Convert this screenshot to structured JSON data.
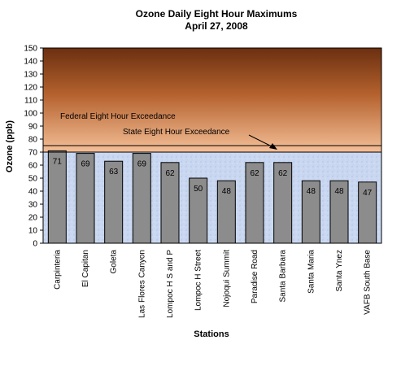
{
  "chart_data": {
    "type": "bar",
    "title": "Ozone Daily Eight Hour Maximums",
    "subtitle": "April 27, 2008",
    "xlabel": "Stations",
    "ylabel": "Ozone (ppb)",
    "ylim": [
      0,
      150
    ],
    "yticks": [
      0,
      10,
      20,
      30,
      40,
      50,
      60,
      70,
      80,
      90,
      100,
      110,
      120,
      130,
      140,
      150
    ],
    "categories": [
      "Carpinteria",
      "El Capitan",
      "Goleta",
      "Las Flores Canyon",
      "Lompoc H S and P",
      "Lompoc H Street",
      "Nojoqui Summit",
      "Paradise Road",
      "Santa Barbara",
      "Santa Maria",
      "Santa Ynez",
      "VAFB South Base"
    ],
    "values": [
      71,
      69,
      63,
      69,
      62,
      50,
      48,
      62,
      62,
      48,
      48,
      47
    ],
    "thresholds": [
      {
        "label": "Federal Eight Hour Exceedance",
        "value": 75
      },
      {
        "label": "State Eight Hour Exceedance",
        "value": 70
      }
    ],
    "colors": {
      "bar": "#8c8c8c",
      "bar_stroke": "#000000",
      "low_band": "#c6d6f0",
      "high_top": "#6b2f10",
      "high_bottom": "#f2b48a"
    },
    "grid": false,
    "legend": "none"
  }
}
